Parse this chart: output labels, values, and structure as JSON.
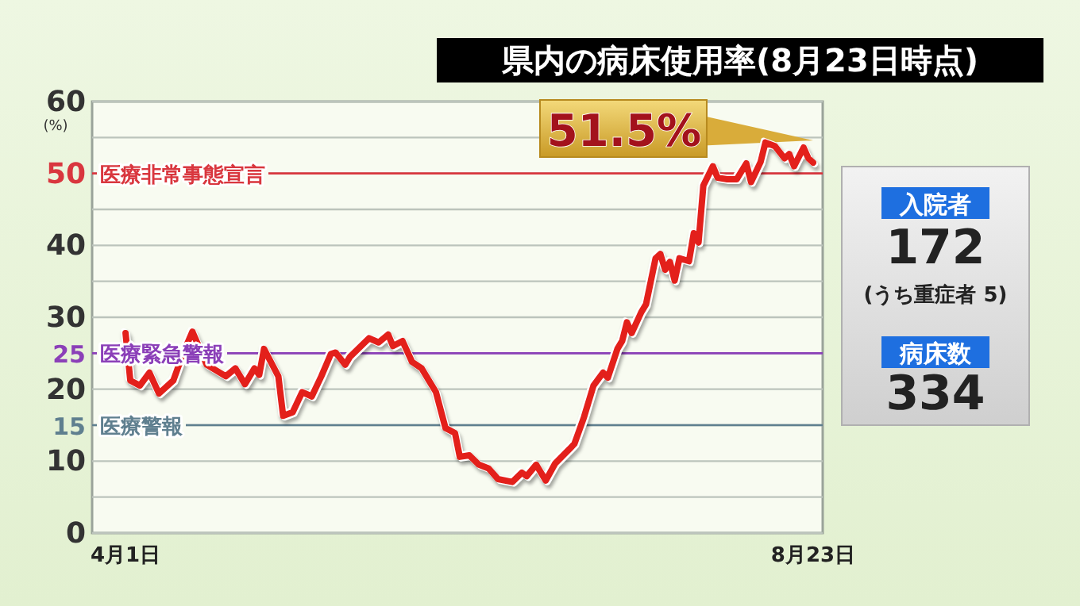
{
  "chart_data": {
    "type": "line",
    "title": "県内の病床使用率(8月23日時点)",
    "ylabel": "(%)",
    "x": [
      "--04-01",
      "--04-02",
      "--04-04",
      "--04-06",
      "--04-08",
      "--04-11",
      "--04-13",
      "--04-15",
      "--04-18",
      "--04-22",
      "--04-24",
      "--04-26",
      "--04-28",
      "--04-29",
      "--04-30",
      "--05-03",
      "--05-04",
      "--05-06",
      "--05-08",
      "--05-10",
      "--05-12",
      "--05-14",
      "--05-15",
      "--05-17",
      "--05-18",
      "--05-22",
      "--05-24",
      "--05-26",
      "--05-27",
      "--05-29",
      "--05-31",
      "--06-02",
      "--06-04",
      "--06-05",
      "--06-07",
      "--06-09",
      "--06-10",
      "--06-12",
      "--06-14",
      "--06-16",
      "--06-18",
      "--06-21",
      "--06-23",
      "--06-24",
      "--06-26",
      "--06-28",
      "--06-30",
      "--07-03",
      "--07-04",
      "--07-06",
      "--07-08",
      "--07-10",
      "--07-11",
      "--07-13",
      "--07-14",
      "--07-15",
      "--07-16",
      "--07-18",
      "--07-19",
      "--07-21",
      "--07-22",
      "--07-23",
      "--07-24",
      "--07-25",
      "--07-26",
      "--07-28",
      "--07-29",
      "--07-30",
      "--07-31",
      "--08-02",
      "--08-03",
      "--08-05",
      "--08-07",
      "--08-09",
      "--08-10",
      "--08-12",
      "--08-13",
      "--08-15",
      "--08-17",
      "--08-18",
      "--08-19",
      "--08-21",
      "--08-22",
      "--08-23"
    ],
    "series": [
      {
        "color": "#e3201b",
        "values": [
          27.8,
          21.2,
          20.5,
          22.3,
          19.4,
          21.2,
          24.9,
          28,
          23.4,
          21.8,
          22.9,
          20.7,
          22.9,
          22,
          25.6,
          21.8,
          16.3,
          16.8,
          19.6,
          19,
          21.8,
          24.9,
          25.1,
          23.4,
          24.5,
          27.1,
          26.5,
          27.6,
          26,
          26.7,
          23.8,
          22.9,
          20.7,
          19.6,
          14.6,
          13.9,
          10.6,
          10.8,
          9.5,
          9,
          7.5,
          7.1,
          8.4,
          7.9,
          9.5,
          7.3,
          9.7,
          11.7,
          12.4,
          16.1,
          20.5,
          22.3,
          21.6,
          25.6,
          26.7,
          29.3,
          27.8,
          30.7,
          31.8,
          38.2,
          38.8,
          36.6,
          37.7,
          35.1,
          38.2,
          37.8,
          41.7,
          40.4,
          48.3,
          51,
          49.4,
          49.2,
          49.2,
          51.4,
          48.8,
          51.6,
          54.3,
          53.8,
          52.1,
          52.7,
          51,
          53.6,
          52.1,
          51.5
        ]
      }
    ],
    "xlim": [
      "--03-25",
      "--08-25"
    ],
    "xticks": [
      {
        "value": "--04-01",
        "label": "4月1日"
      },
      {
        "value": "--08-23",
        "label": "8月23日"
      }
    ],
    "ylim": [
      0,
      60
    ],
    "yticks": [
      0,
      {
        "value": 5,
        "label": null
      },
      10,
      15,
      20,
      25,
      30,
      {
        "value": 35,
        "label": null
      },
      40,
      {
        "value": 45,
        "label": null
      },
      50,
      {
        "value": 55,
        "label": null
      },
      60
    ],
    "grid": "y",
    "marker": "none",
    "line_style": "solid",
    "ref_lines": [
      {
        "axis": "y",
        "value": 50,
        "label": "医療非常事態宣言",
        "color": "#d9363e"
      },
      {
        "axis": "y",
        "value": 25,
        "label": "医療緊急警報",
        "color": "#8b3fb8"
      },
      {
        "axis": "y",
        "value": 15,
        "label": "医療警報",
        "color": "#5f7f8f"
      }
    ],
    "annotations": [
      {
        "text": "51.5%",
        "x": "--08-23",
        "y": 51.5
      },
      "入院者",
      "172",
      "(うち重症者 5)",
      "病床数",
      "334"
    ]
  }
}
